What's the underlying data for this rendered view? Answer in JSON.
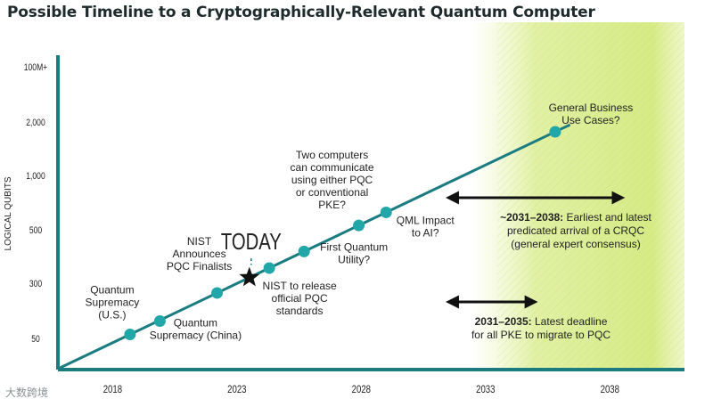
{
  "title": "Possible Timeline to a Cryptographically-Relevant Quantum Computer",
  "watermark": "大数跨境",
  "colors": {
    "line": "#1a7c80",
    "dot": "#22a7a8",
    "axis": "#1a7c80",
    "highlight": "#d9ec8a",
    "text": "#222222",
    "star": "#111111"
  },
  "chart_data": {
    "type": "line",
    "ylabel": "LOGICAL QUBITS",
    "xlabel": "",
    "x_ticks": [
      "2018",
      "2023",
      "2028",
      "2033",
      "2038"
    ],
    "x_tick_values": [
      2018,
      2023,
      2028,
      2033,
      2038
    ],
    "y_ticks": [
      "50",
      "300",
      "500",
      "1,000",
      "2,000",
      "100M+"
    ],
    "xlim": [
      2015.8,
      2041
    ],
    "y_scale": "categorical-ordinal",
    "trend_line": [
      {
        "x": 2015.8,
        "y_level": -0.55
      },
      {
        "x": 2036.4,
        "y_level": 3.95
      }
    ],
    "highlight_region": {
      "x_start": 2032.4,
      "x_end": 2041
    },
    "today_marker": {
      "label": "TODAY",
      "x": 2023.5
    },
    "milestones": [
      {
        "id": "quantum-supremacy-us",
        "lines": [
          "Quantum",
          "Supremacy",
          "(U.S.)"
        ],
        "x": 2018.7
      },
      {
        "id": "quantum-supremacy-china",
        "lines": [
          "Quantum",
          "Supremacy (China)"
        ],
        "x": 2019.9
      },
      {
        "id": "nist-pqc-finalists",
        "lines": [
          "NIST",
          "Announces",
          "PQC Finalists"
        ],
        "x": 2022.2
      },
      {
        "id": "nist-release-standards",
        "lines": [
          "NIST to release",
          "official PQC",
          "standards"
        ],
        "x": 2024.3
      },
      {
        "id": "first-quantum-utility",
        "lines": [
          "First Quantum",
          "Utility?"
        ],
        "x": 2025.7
      },
      {
        "id": "two-computers",
        "lines": [
          "Two computers",
          "can communicate",
          "using either PQC",
          "or conventional",
          "PKE?"
        ],
        "x": 2027.9
      },
      {
        "id": "qml-impact",
        "lines": [
          "QML Impact",
          "to AI?"
        ],
        "x": 2029.0
      },
      {
        "id": "general-business",
        "lines": [
          "General Business",
          "Use Cases?"
        ],
        "x": 2035.8
      }
    ],
    "ranges": [
      {
        "id": "range-2031-2038",
        "x_start": 2031.5,
        "x_end": 2038.5,
        "bold": "~2031–2038:",
        "text": " Earliest and latest",
        "lines": [
          "predicated arrival of a CRQC",
          "(general expert consensus)"
        ]
      },
      {
        "id": "range-2031-2035",
        "x_start": 2031.5,
        "x_end": 2035.0,
        "bold": "2031–2035:",
        "text": " Latest deadline",
        "lines": [
          "for all PKE to migrate to PQC"
        ]
      }
    ]
  }
}
